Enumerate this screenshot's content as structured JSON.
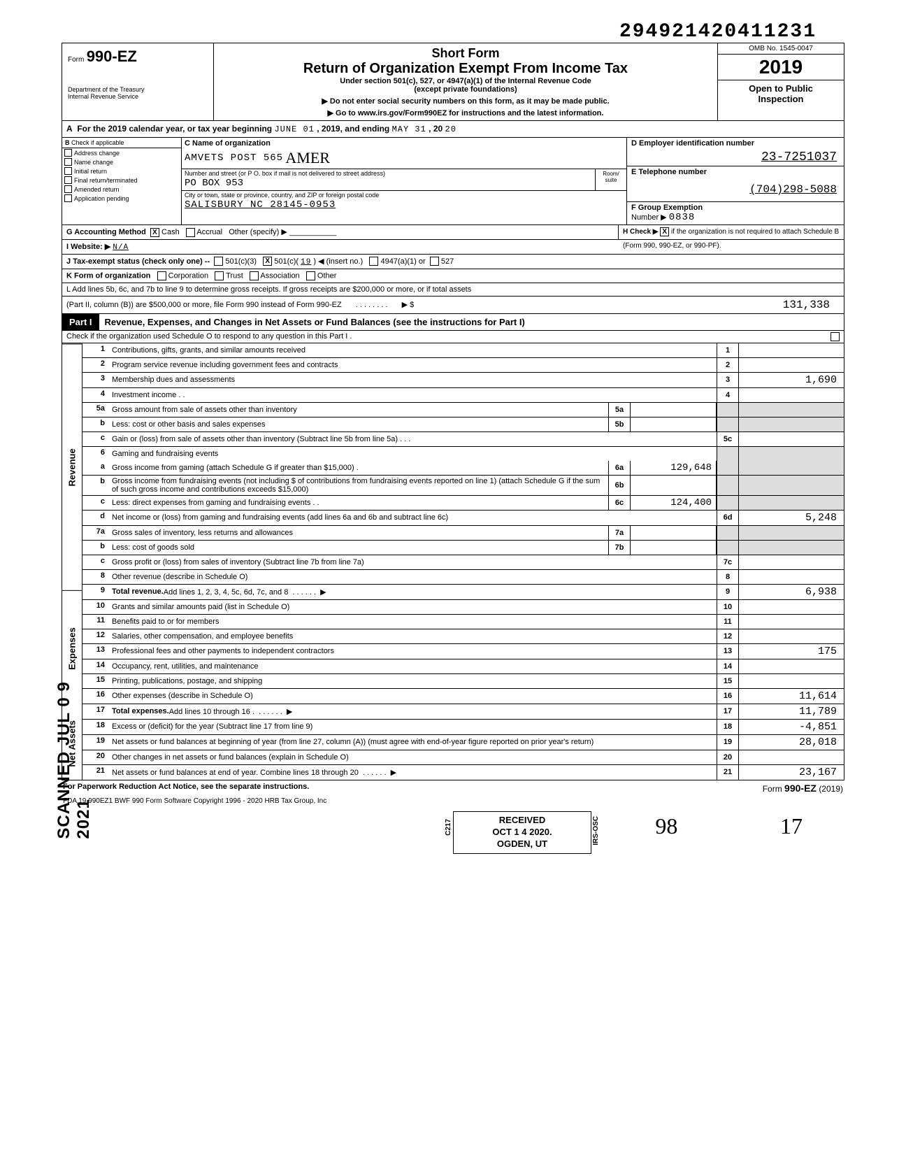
{
  "doc_id": "294921420411231",
  "header": {
    "form_prefix": "Form",
    "form_number": "990-EZ",
    "title1": "Short Form",
    "title2": "Return of Organization Exempt From Income Tax",
    "subtitle": "Under section 501(c), 527, or 4947(a)(1) of the Internal Revenue Code",
    "subtitle2": "(except private foundations)",
    "arrow1": "▶ Do not enter social security numbers on this form, as it may be made public.",
    "arrow2": "▶ Go to www.irs.gov/Form990EZ for instructions and the latest information.",
    "dept1": "Department of the Treasury",
    "dept2": "Internal Revenue Service",
    "omb": "OMB No. 1545-0047",
    "year": "2019",
    "open_public1": "Open to Public",
    "open_public2": "Inspection"
  },
  "line_a": {
    "prefix": "For the 2019 calendar year, or tax year beginning",
    "begin": "JUNE  01",
    "mid": ", 2019, and ending",
    "end_month": "MAY  31",
    "end_yr_label": ", 20",
    "end_yr": "20"
  },
  "colB": {
    "head": "B",
    "label": "Check if applicable",
    "items": [
      "Address change",
      "Name change",
      "Initial return",
      "Final return/terminated",
      "Amended return",
      "Application pending"
    ]
  },
  "colC": {
    "head": "C",
    "name_label": "Name of organization",
    "name": "AMVETS POST 565",
    "name_hand": "AMER",
    "addr_label": "Number and street (or P O. box if mail is not delivered to street address)",
    "room_label": "Room/\nsuite",
    "addr": "PO BOX 953",
    "city_label": "City or town, state or province, country, and ZIP or foreign postal code",
    "city": "SALISBURY NC 28145-0953"
  },
  "colD": {
    "head_d": "D Employer identification number",
    "ein": "23-7251037",
    "head_e": "E  Telephone number",
    "phone": "(704)298-5088",
    "head_f": "F  Group Exemption",
    "gex_label": "Number  ▶",
    "gex": "0838"
  },
  "rowG": {
    "g_label": "G  Accounting Method",
    "cash": "Cash",
    "accrual": "Accrual",
    "other": "Other (specify) ▶",
    "h_label": "H  Check ▶",
    "h_text": "if the organization is not required to attach Schedule B"
  },
  "rowI": {
    "label": "I   Website:  ▶",
    "val": "N/A",
    "right": "(Form 990, 990-EZ, or 990-PF)."
  },
  "rowJ": {
    "label": "J   Tax-exempt status (check only one) --",
    "c3": "501(c)(3)",
    "c_other_a": "501(c)(",
    "c_other_num": "19",
    "c_other_b": ") ◀ (insert no.)",
    "c4947": "4947(a)(1) or",
    "c527": "527"
  },
  "rowK": {
    "label": "K  Form of organization",
    "opts": [
      "Corporation",
      "Trust",
      "Association",
      "Other"
    ]
  },
  "rowL": {
    "text1": "L  Add lines 5b, 6c, and 7b to line 9 to determine gross receipts. If gross receipts are $200,000 or more, or if total assets",
    "text2": "(Part II, column (B)) are $500,000 or more, file Form 990 instead of Form 990-EZ",
    "arrow": "▶  $",
    "val": "131,338"
  },
  "partI": {
    "tag": "Part I",
    "title": "Revenue, Expenses, and Changes in Net Assets or Fund Balances (see the instructions for Part I)",
    "check_text": "Check if the organization used Schedule O to respond to any question in this Part I ."
  },
  "sidebars": [
    "Revenue",
    "Expenses",
    "Net Assets"
  ],
  "rows": [
    {
      "n": "1",
      "d": "Contributions, gifts, grants, and similar amounts received",
      "en": "1",
      "ev": ""
    },
    {
      "n": "2",
      "d": "Program service revenue including government fees and contracts",
      "en": "2",
      "ev": ""
    },
    {
      "n": "3",
      "d": "Membership dues and assessments",
      "en": "3",
      "ev": "1,690"
    },
    {
      "n": "4",
      "d": "Investment income . .",
      "en": "4",
      "ev": ""
    },
    {
      "n": "5a",
      "d": "Gross amount from sale of assets other than inventory",
      "mn": "5a",
      "mv": "",
      "shade": true
    },
    {
      "n": "b",
      "d": "Less: cost or other basis and sales expenses",
      "mn": "5b",
      "mv": "",
      "shade": true
    },
    {
      "n": "c",
      "d": "Gain or (loss) from sale of assets other than inventory (Subtract line 5b from line 5a)  . . .",
      "en": "5c",
      "ev": ""
    },
    {
      "n": "6",
      "d": "Gaming and fundraising events",
      "shade": true,
      "noborder": true
    },
    {
      "n": "a",
      "d": "Gross income from gaming (attach Schedule G if greater than $15,000) .",
      "mn": "6a",
      "mv": "129,648",
      "shade": true
    },
    {
      "n": "b",
      "d": "Gross income from fundraising events (not including   $                         of contributions from fundraising events reported on line 1) (attach Schedule G if the sum of such gross income and contributions exceeds $15,000)",
      "mn": "6b",
      "mv": "",
      "shade": true
    },
    {
      "n": "c",
      "d": "Less: direct expenses from gaming and fundraising events  . .",
      "mn": "6c",
      "mv": "124,400",
      "shade": true
    },
    {
      "n": "d",
      "d": "Net income or (loss) from gaming and fundraising events (add lines 6a and 6b and subtract line 6c)",
      "en": "6d",
      "ev": "5,248"
    },
    {
      "n": "7a",
      "d": "Gross sales of inventory, less returns and allowances",
      "mn": "7a",
      "mv": "",
      "shade": true
    },
    {
      "n": "b",
      "d": "Less: cost of goods sold",
      "mn": "7b",
      "mv": "",
      "shade": true
    },
    {
      "n": "c",
      "d": "Gross profit or (loss) from sales of inventory (Subtract line 7b from line 7a)",
      "en": "7c",
      "ev": ""
    },
    {
      "n": "8",
      "d": "Other revenue (describe in Schedule O)",
      "en": "8",
      "ev": ""
    },
    {
      "n": "9",
      "d": "Total revenue. Add lines 1, 2, 3, 4, 5c, 6d, 7c, and 8",
      "en": "9",
      "ev": "6,938",
      "bold": true,
      "arrow": true
    },
    {
      "n": "10",
      "d": "Grants and similar amounts paid (list in Schedule O)",
      "en": "10",
      "ev": ""
    },
    {
      "n": "11",
      "d": "Benefits paid to or for members",
      "en": "11",
      "ev": ""
    },
    {
      "n": "12",
      "d": "Salaries, other compensation, and employee benefits",
      "en": "12",
      "ev": ""
    },
    {
      "n": "13",
      "d": "Professional fees and other payments to independent contractors",
      "en": "13",
      "ev": "175"
    },
    {
      "n": "14",
      "d": "Occupancy, rent, utilities, and maintenance",
      "en": "14",
      "ev": ""
    },
    {
      "n": "15",
      "d": "Printing, publications, postage, and shipping",
      "en": "15",
      "ev": ""
    },
    {
      "n": "16",
      "d": "Other expenses (describe in Schedule O)",
      "en": "16",
      "ev": "11,614"
    },
    {
      "n": "17",
      "d": "Total expenses. Add lines 10 through 16 .",
      "en": "17",
      "ev": "11,789",
      "bold": true,
      "arrow": true
    },
    {
      "n": "18",
      "d": "Excess or (deficit) for the year (Subtract line 17 from line 9)",
      "en": "18",
      "ev": "-4,851"
    },
    {
      "n": "19",
      "d": "Net assets or fund balances at beginning of year (from line 27, column (A)) (must agree with end-of-year figure reported on prior year's return)",
      "en": "19",
      "ev": "28,018"
    },
    {
      "n": "20",
      "d": "Other changes in net assets or fund balances (explain in Schedule O)",
      "en": "20",
      "ev": ""
    },
    {
      "n": "21",
      "d": "Net assets or fund balances at end of year. Combine lines 18 through 20",
      "en": "21",
      "ev": "23,167",
      "arrow": true
    }
  ],
  "stamp": {
    "l1": "RECEIVED",
    "l2": "OCT 1 4 2020.",
    "l3": "OGDEN, UT",
    "side_l": "C217",
    "side_r": "IRS-OSC"
  },
  "scanned": "SCANNED JUL 0 9 2021",
  "footer": {
    "left": "For Paperwork Reduction Act Notice, see the separate instructions.",
    "fda": "FDA    19   990EZ1     BWF 990     Form Software Copyright 1996 - 2020 HRB Tax Group, Inc",
    "right_pre": "Form ",
    "right_form": "990-EZ",
    "right_yr": " (2019)"
  },
  "hand_bottom_left": "98",
  "hand_bottom_right": "17"
}
